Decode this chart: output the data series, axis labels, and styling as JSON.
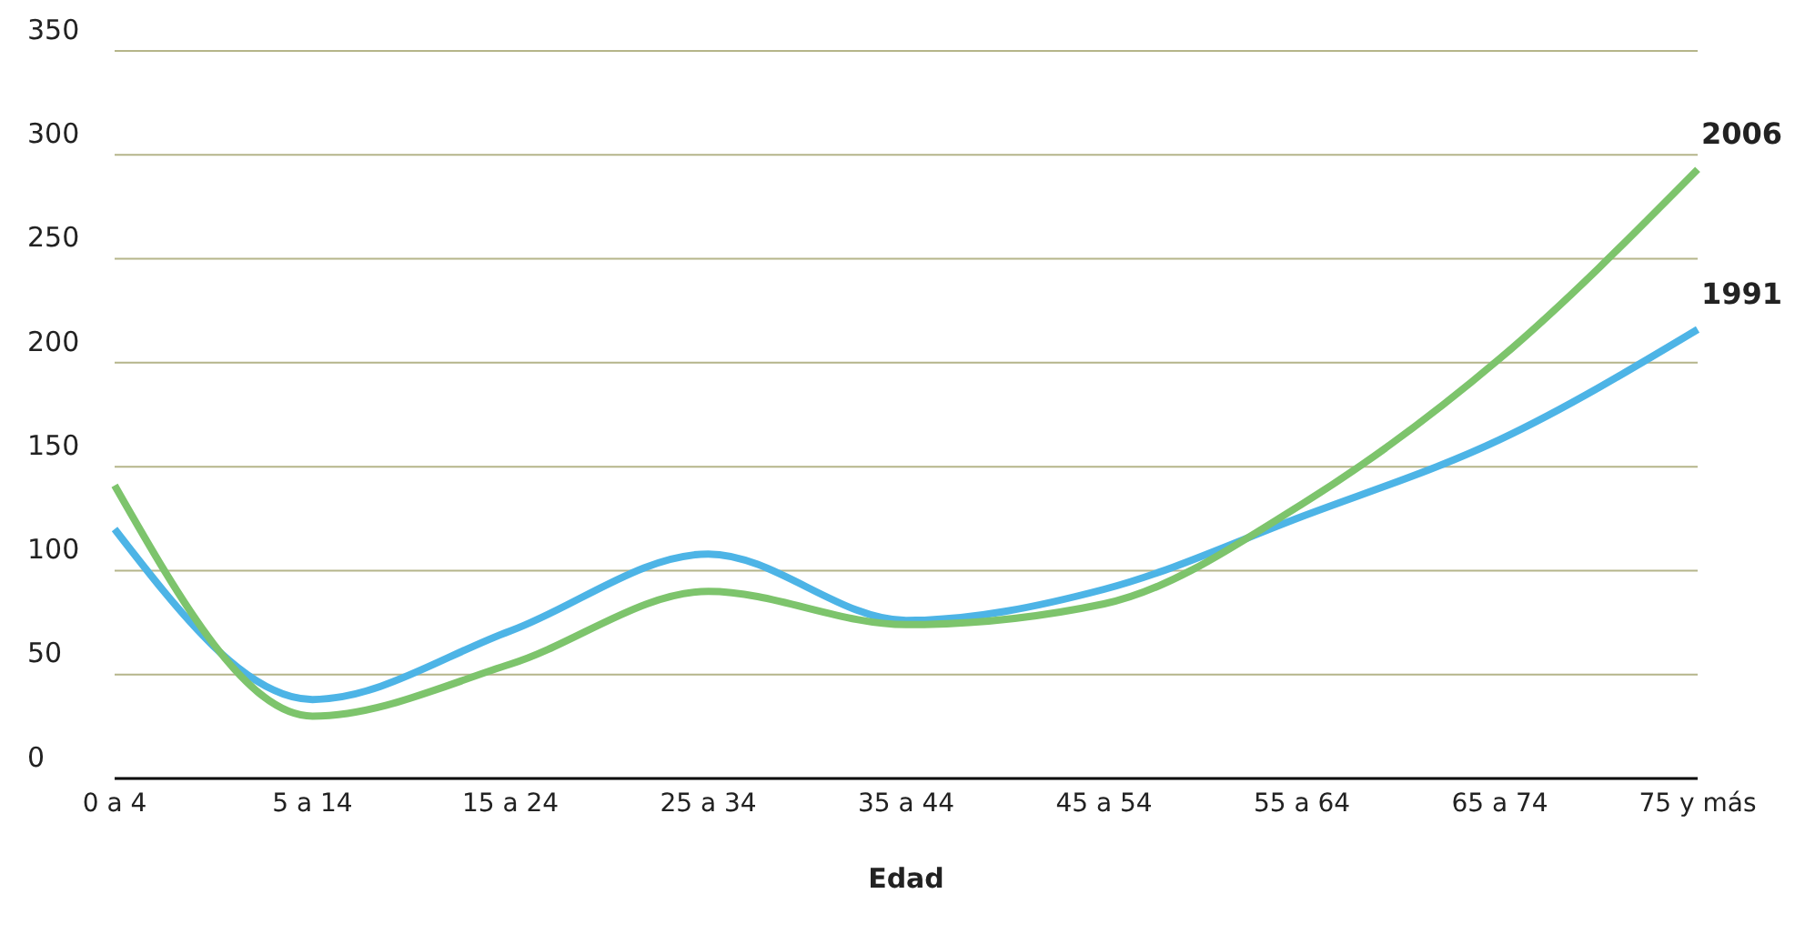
{
  "chart_data": {
    "type": "line",
    "xlabel": "Edad",
    "categories": [
      "0 a 4",
      "5 a 14",
      "15 a 24",
      "25 a 34",
      "35 a 44",
      "45 a 54",
      "55 a 64",
      "65 a 74",
      "75 y más"
    ],
    "series": [
      {
        "name": "1991",
        "color": "#4db4e6",
        "values": [
          120,
          38,
          71,
          108,
          76,
          91,
          126,
          163,
          216
        ]
      },
      {
        "name": "2006",
        "color": "#7dc46c",
        "values": [
          141,
          30,
          55,
          90,
          74,
          84,
          132,
          202,
          293
        ]
      }
    ],
    "ylim": [
      0,
      350
    ],
    "yticks": [
      0,
      50,
      100,
      150,
      200,
      250,
      300,
      350
    ],
    "grid": "y",
    "marker": "none",
    "line_style": "solid"
  }
}
